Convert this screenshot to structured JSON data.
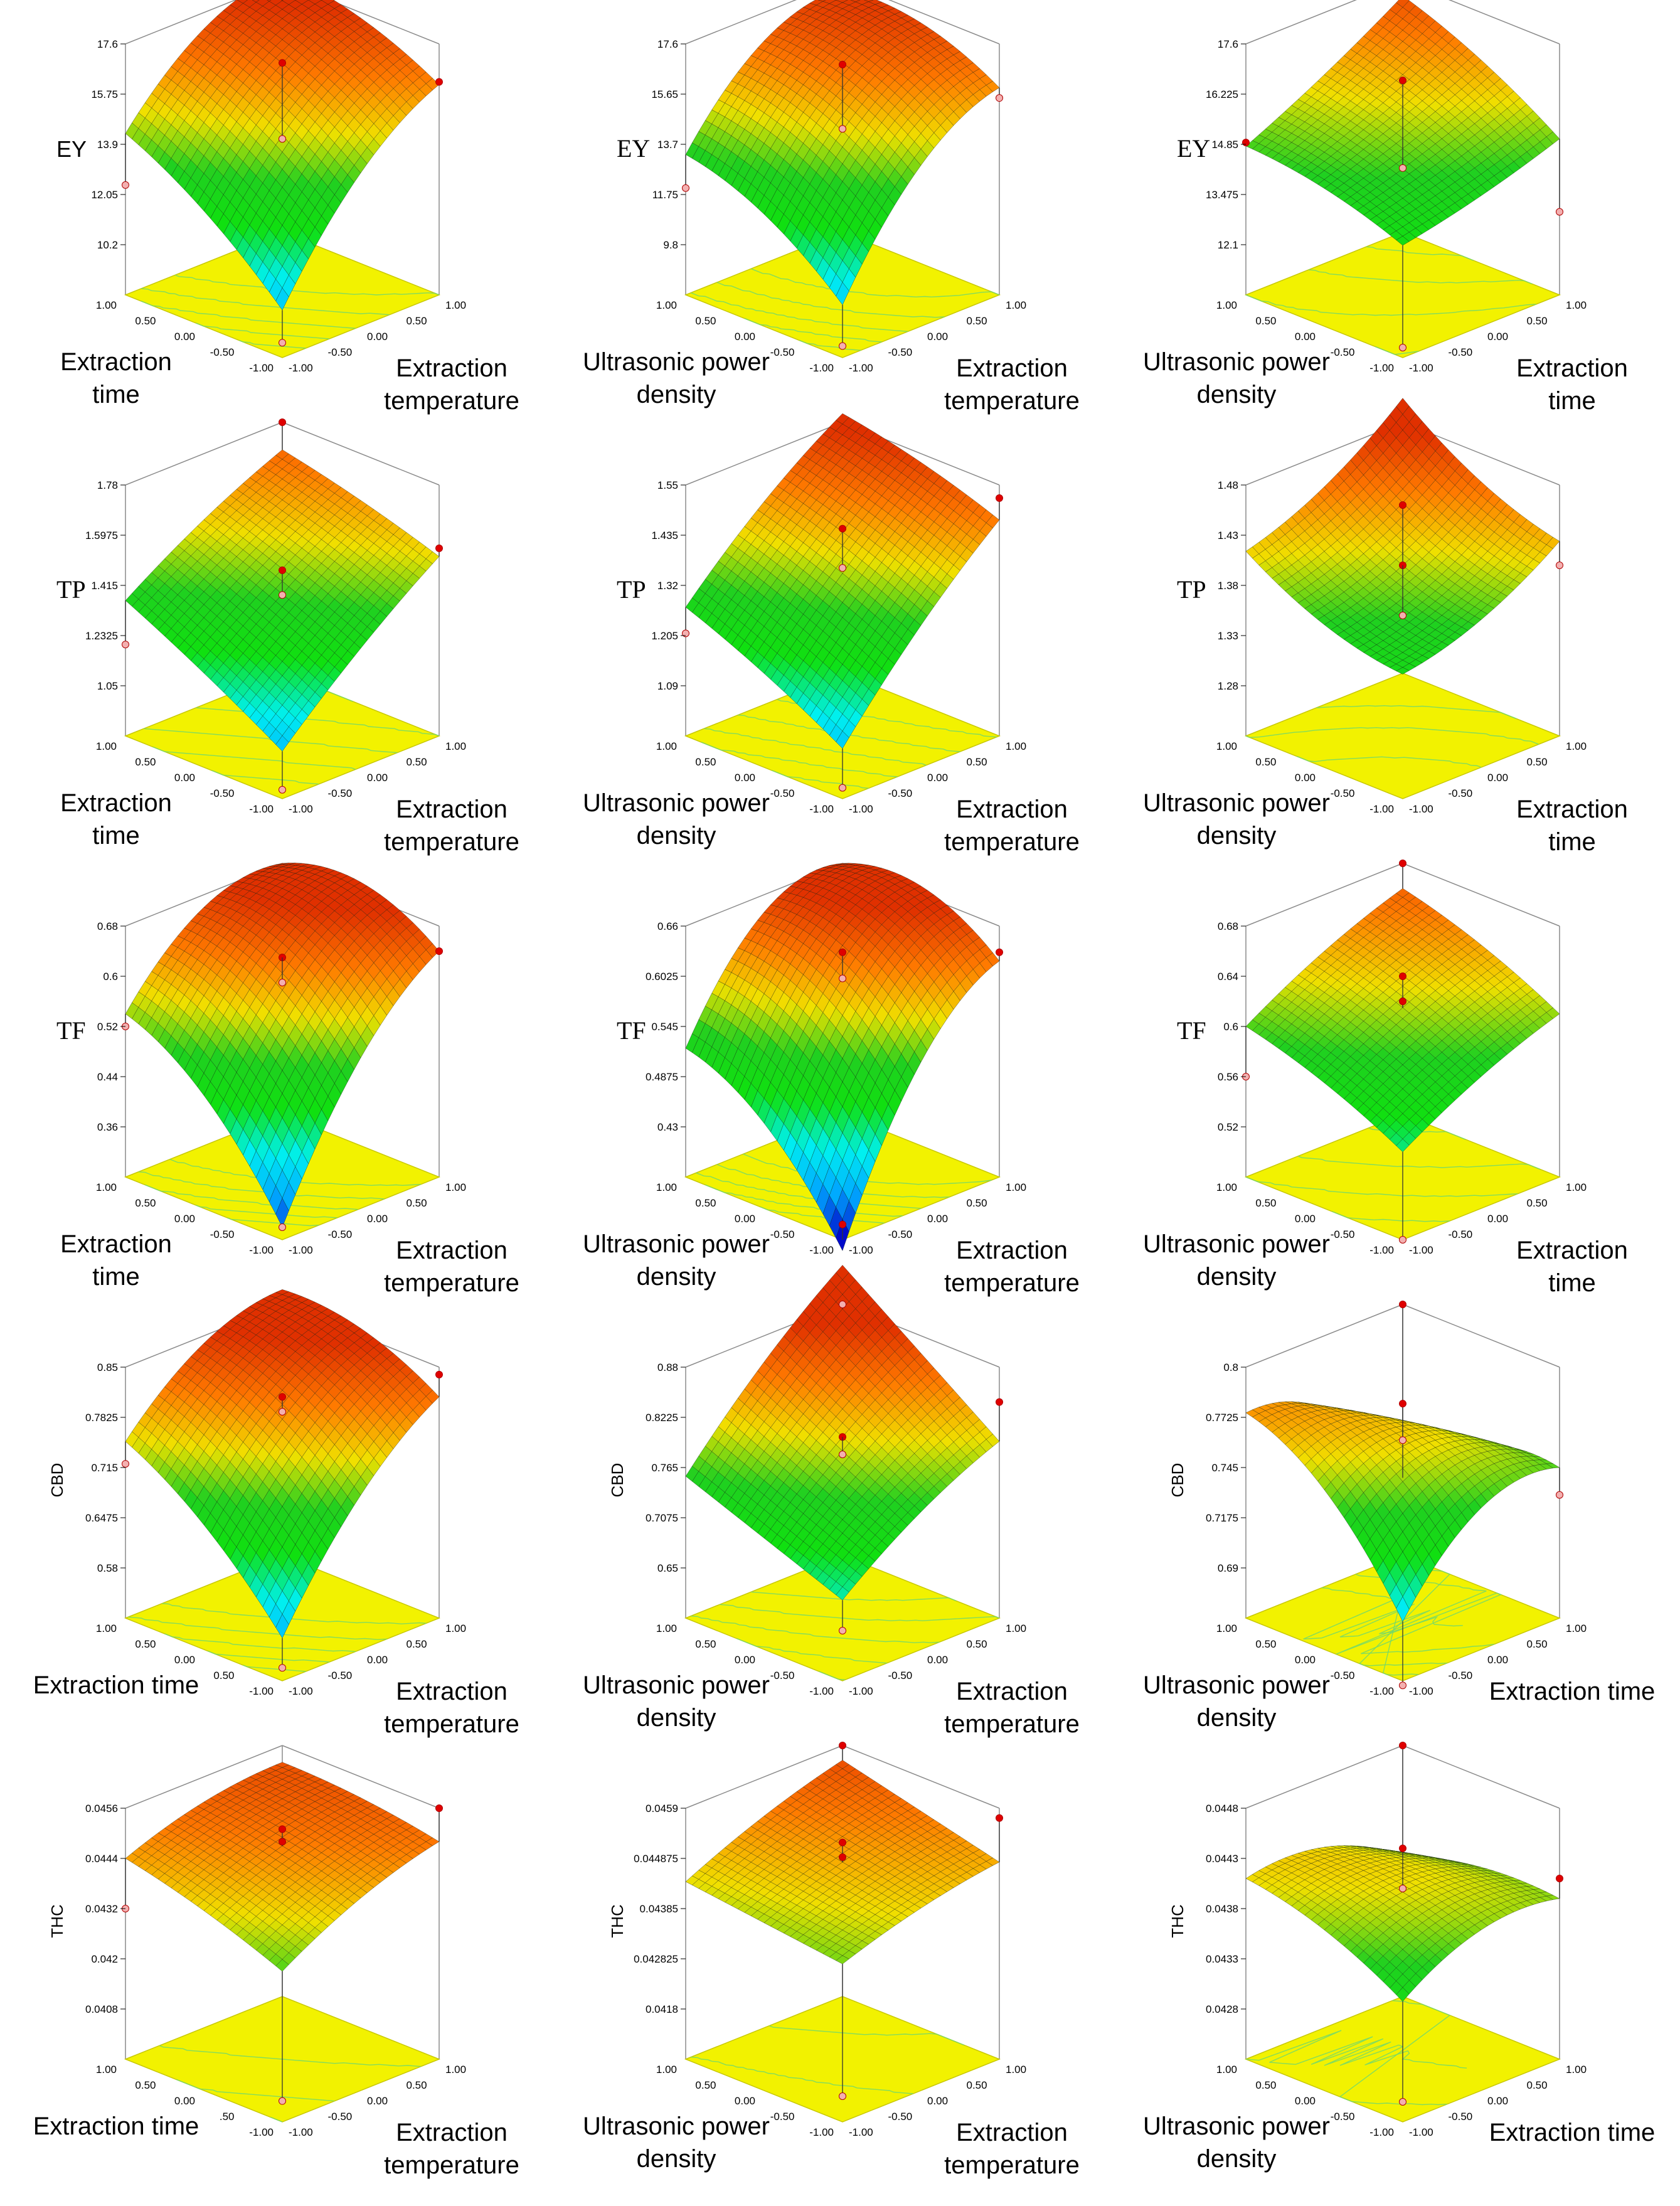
{
  "colors": {
    "base_plane": "#f2f200",
    "base_edge": "#c8c800",
    "contour": "#6fd86f",
    "box_line": "#8a8a8a",
    "mesh_line": "#0a1a0a",
    "point_fill": "#e00000",
    "point_hollow": "#f3b0b0",
    "colormap": [
      "#0000c8",
      "#00a8ff",
      "#00f0f0",
      "#10e010",
      "#20d020",
      "#f0e000",
      "#ff7a00",
      "#e03000"
    ]
  },
  "chart_data": [
    {
      "type": "surface3d",
      "response": "EY",
      "response_style": "sans",
      "x1label": [
        "Extraction",
        "time"
      ],
      "x2label": [
        "Extraction",
        "temperature"
      ],
      "x1ticks": [
        "1.00",
        "0.50",
        "0.00",
        "-0.50",
        "-1.00"
      ],
      "x2ticks": [
        "-1.00",
        "-0.50",
        "0.00",
        "0.50",
        "1.00"
      ],
      "zticks": [
        "10.2",
        "12.05",
        "13.9",
        "15.75",
        "17.6"
      ],
      "zlim": [
        8.35,
        17.6
      ],
      "model": {
        "b0": 15.9,
        "b1": 1.5,
        "b2": 2.4,
        "b11": -0.4,
        "b22": -0.9,
        "b12": -0.6
      },
      "points": [
        {
          "x1": 1,
          "x2": 1,
          "z": 17.6
        },
        {
          "x1": 0,
          "x2": 0,
          "z": 16.9
        },
        {
          "x1": 0,
          "x2": 0,
          "z": 14.1
        },
        {
          "x1": -1,
          "x2": 1,
          "z": 16.2
        },
        {
          "x1": 1,
          "x2": -1,
          "z": 12.4
        },
        {
          "x1": -1,
          "x2": -1,
          "z": 8.9
        }
      ]
    },
    {
      "type": "surface3d",
      "response": "EY",
      "response_style": "serif",
      "x1label": [
        "Ultrasonic power",
        "density"
      ],
      "x2label": [
        "Extraction",
        "temperature"
      ],
      "x1ticks": [
        "1.00",
        "0.50",
        "0.00",
        "-0.50",
        "-1.00"
      ],
      "x2ticks": [
        "-1.00",
        "-0.50",
        "0.00",
        "0.50",
        "1.00"
      ],
      "zticks": [
        "9.8",
        "11.75",
        "13.7",
        "15.65",
        "17.6"
      ],
      "zlim": [
        7.85,
        17.6
      ],
      "model": {
        "b0": 15.9,
        "b1": 1.2,
        "b2": 2.5,
        "b11": -0.6,
        "b22": -1.2,
        "b12": -0.5
      },
      "points": [
        {
          "x1": 0,
          "x2": 0,
          "z": 16.8
        },
        {
          "x1": 0,
          "x2": 0,
          "z": 14.3
        },
        {
          "x1": -1,
          "x2": 1,
          "z": 15.5
        },
        {
          "x1": 1,
          "x2": -1,
          "z": 12.0
        },
        {
          "x1": -1,
          "x2": -1,
          "z": 8.3
        }
      ]
    },
    {
      "type": "surface3d",
      "response": "EY",
      "response_style": "serif",
      "x1label": [
        "Ultrasonic power",
        "density"
      ],
      "x2label": [
        "Extraction",
        "time"
      ],
      "x1ticks": [
        "1.00",
        "0.50",
        "0.00",
        "-0.50",
        "-1.00"
      ],
      "x2ticks": [
        "-1.00",
        "-0.50",
        "0.00",
        "0.50",
        "1.00"
      ],
      "zticks": [
        "12.1",
        "13.475",
        "14.85",
        "16.225",
        "17.6"
      ],
      "zlim": [
        10.725,
        17.6
      ],
      "model": {
        "b0": 15.3,
        "b1": 0.8,
        "b2": 0.9,
        "b11": -0.2,
        "b22": 0.1,
        "b12": 0.3
      },
      "points": [
        {
          "x1": 0,
          "x2": 0,
          "z": 16.6
        },
        {
          "x1": 0,
          "x2": 0,
          "z": 14.2
        },
        {
          "x1": 1,
          "x2": -1,
          "z": 14.9
        },
        {
          "x1": -1,
          "x2": -1,
          "z": 11.0
        },
        {
          "x1": -1,
          "x2": 1,
          "z": 13.0
        }
      ]
    },
    {
      "type": "surface3d",
      "response": "TP",
      "response_style": "serif",
      "x1label": [
        "Extraction",
        "time"
      ],
      "x2label": [
        "Extraction",
        "temperature"
      ],
      "x1ticks": [
        "1.00",
        "0.50",
        "0.00",
        "-0.50",
        "-1.00"
      ],
      "x2ticks": [
        "-1.00",
        "-0.50",
        "0.00",
        "0.50",
        "1.00"
      ],
      "zticks": [
        "1.05",
        "1.2325",
        "1.415",
        "1.5975",
        "1.78"
      ],
      "zlim": [
        0.8675,
        1.78
      ],
      "model": {
        "b0": 1.43,
        "b1": 0.12,
        "b2": 0.2,
        "b11": -0.01,
        "b22": -0.02,
        "b12": -0.04
      },
      "points": [
        {
          "x1": 1,
          "x2": 1,
          "z": 1.78
        },
        {
          "x1": 0,
          "x2": 0,
          "z": 1.47
        },
        {
          "x1": 0,
          "x2": 0,
          "z": 1.38
        },
        {
          "x1": -1,
          "x2": 1,
          "z": 1.55
        },
        {
          "x1": 1,
          "x2": -1,
          "z": 1.2
        },
        {
          "x1": -1,
          "x2": -1,
          "z": 0.9
        }
      ]
    },
    {
      "type": "surface3d",
      "response": "TP",
      "response_style": "serif",
      "x1label": [
        "Ultrasonic power",
        "density"
      ],
      "x2label": [
        "Extraction",
        "temperature"
      ],
      "x1ticks": [
        "1.00",
        "0.50",
        "0.00",
        "-0.50",
        "-1.00"
      ],
      "x2ticks": [
        "-1.00",
        "-0.50",
        "0.00",
        "0.50",
        "1.00"
      ],
      "zticks": [
        "1.09",
        "1.205",
        "1.32",
        "1.435",
        "1.55"
      ],
      "zlim": [
        0.975,
        1.55
      ],
      "model": {
        "b0": 1.38,
        "b1": 0.07,
        "b2": 0.17,
        "b11": -0.01,
        "b22": -0.02,
        "b12": -0.02
      },
      "points": [
        {
          "x1": 0,
          "x2": 0,
          "z": 1.45
        },
        {
          "x1": 0,
          "x2": 0,
          "z": 1.36
        },
        {
          "x1": 1,
          "x2": -1,
          "z": 1.21
        },
        {
          "x1": -1,
          "x2": -1,
          "z": 1.0
        },
        {
          "x1": -1,
          "x2": 1,
          "z": 1.52
        }
      ]
    },
    {
      "type": "surface3d",
      "response": "TP",
      "response_style": "serif",
      "x1label": [
        "Ultrasonic power",
        "density"
      ],
      "x2label": [
        "Extraction",
        "time"
      ],
      "x1ticks": [
        "1.00",
        "0.50",
        "0.00",
        "-0.50",
        "-1.00"
      ],
      "x2ticks": [
        "-1.00",
        "-0.50",
        "0.00",
        "0.50",
        "1.00"
      ],
      "zticks": [
        "1.28",
        "1.33",
        "1.38",
        "1.43",
        "1.48"
      ],
      "zlim": [
        1.23,
        1.48
      ],
      "model": {
        "b0": 1.4,
        "b1": 0.035,
        "b2": 0.04,
        "b11": 0.012,
        "b22": 0.012,
        "b12": 0.005
      },
      "points": [
        {
          "x1": 0,
          "x2": 0,
          "z": 1.46
        },
        {
          "x1": 0,
          "x2": 0,
          "z": 1.4
        },
        {
          "x1": 0,
          "x2": 0,
          "z": 1.35
        },
        {
          "x1": -1,
          "x2": 1,
          "z": 1.4
        }
      ]
    },
    {
      "type": "surface3d",
      "response": "TF",
      "response_style": "serif",
      "x1label": [
        "Extraction",
        "time"
      ],
      "x2label": [
        "Extraction",
        "temperature"
      ],
      "x1ticks": [
        "1.00",
        "0.50",
        "0.00",
        "-0.50",
        "-1.00"
      ],
      "x2ticks": [
        "-1.00",
        "-0.50",
        "0.00",
        "0.50",
        "1.00"
      ],
      "zticks": [
        "0.36",
        "0.44",
        "0.52",
        "0.6",
        "0.68"
      ],
      "zlim": [
        0.28,
        0.68
      ],
      "model": {
        "b0": 0.63,
        "b1": 0.07,
        "b2": 0.12,
        "b11": -0.04,
        "b22": -0.05,
        "b12": -0.05
      },
      "points": [
        {
          "x1": 0,
          "x2": 0,
          "z": 0.63
        },
        {
          "x1": 0,
          "x2": 0,
          "z": 0.59
        },
        {
          "x1": -1,
          "x2": 1,
          "z": 0.64
        },
        {
          "x1": 1,
          "x2": -1,
          "z": 0.52
        },
        {
          "x1": -1,
          "x2": -1,
          "z": 0.3
        }
      ]
    },
    {
      "type": "surface3d",
      "response": "TF",
      "response_style": "serif",
      "x1label": [
        "Ultrasonic power",
        "density"
      ],
      "x2label": [
        "Extraction",
        "temperature"
      ],
      "x1ticks": [
        "1.00",
        "0.50",
        "0.00",
        "-0.50",
        "-1.00"
      ],
      "x2ticks": [
        "-1.00",
        "-0.50",
        "0.00",
        "0.50",
        "1.00"
      ],
      "zticks": [
        "0.43",
        "0.4875",
        "0.545",
        "0.6025",
        "0.66"
      ],
      "zlim": [
        0.3725,
        0.66
      ],
      "model": {
        "b0": 0.62,
        "b1": 0.05,
        "b2": 0.1,
        "b11": -0.03,
        "b22": -0.05,
        "b12": -0.03
      },
      "points": [
        {
          "x1": 0,
          "x2": 0,
          "z": 0.63
        },
        {
          "x1": 0,
          "x2": 0,
          "z": 0.6
        },
        {
          "x1": -1,
          "x2": 1,
          "z": 0.63
        },
        {
          "x1": -1,
          "x2": -1,
          "z": 0.39
        }
      ]
    },
    {
      "type": "surface3d",
      "response": "TF",
      "response_style": "serif",
      "x1label": [
        "Ultrasonic power",
        "density"
      ],
      "x2label": [
        "Extraction",
        "time"
      ],
      "x1ticks": [
        "1.00",
        "0.50",
        "0.00",
        "-0.50",
        "-1.00"
      ],
      "x2ticks": [
        "-1.00",
        "-0.50",
        "0.00",
        "0.50",
        "1.00"
      ],
      "zticks": [
        "0.52",
        "0.56",
        "0.6",
        "0.64",
        "0.68"
      ],
      "zlim": [
        0.48,
        0.68
      ],
      "model": {
        "b0": 0.615,
        "b1": 0.025,
        "b2": 0.03,
        "b11": -0.005,
        "b22": -0.005,
        "b12": 0.0
      },
      "points": [
        {
          "x1": 1,
          "x2": 1,
          "z": 0.68
        },
        {
          "x1": 0,
          "x2": 0,
          "z": 0.64
        },
        {
          "x1": 0,
          "x2": 0,
          "z": 0.62
        },
        {
          "x1": 1,
          "x2": -1,
          "z": 0.56
        },
        {
          "x1": -1,
          "x2": -1,
          "z": 0.48
        }
      ]
    },
    {
      "type": "surface3d",
      "response": "CBD",
      "response_style": "small",
      "x1label": [
        "Extraction time"
      ],
      "x2label": [
        "Extraction",
        "temperature"
      ],
      "x1ticks": [
        "1.00",
        "0.50",
        "0.00",
        "0.50",
        "-1.00"
      ],
      "x2ticks": [
        "-1.00",
        "-0.50",
        "0.00",
        "0.50",
        "1.00"
      ],
      "zticks": [
        "0.58",
        "0.6475",
        "0.715",
        "0.7825",
        "0.85"
      ],
      "zlim": [
        0.5125,
        0.85
      ],
      "model": {
        "b0": 0.8,
        "b1": 0.06,
        "b2": 0.09,
        "b11": -0.02,
        "b22": -0.03,
        "b12": -0.03
      },
      "points": [
        {
          "x1": 0,
          "x2": 0,
          "z": 0.81
        },
        {
          "x1": 0,
          "x2": 0,
          "z": 0.79
        },
        {
          "x1": -1,
          "x2": 1,
          "z": 0.84
        },
        {
          "x1": 1,
          "x2": -1,
          "z": 0.72
        },
        {
          "x1": -1,
          "x2": -1,
          "z": 0.53
        }
      ]
    },
    {
      "type": "surface3d",
      "response": "CBD",
      "response_style": "small",
      "x1label": [
        "Ultrasonic power",
        "density"
      ],
      "x2label": [
        "Extraction",
        "temperature"
      ],
      "x1ticks": [
        "1.00",
        "0.50",
        "0.00",
        "-0.50",
        "-1.00"
      ],
      "x2ticks": [
        "-1.00",
        "-0.50",
        "0.00",
        "0.50",
        "1.00"
      ],
      "zticks": [
        "0.65",
        "0.7075",
        "0.765",
        "0.8225",
        "0.88"
      ],
      "zlim": [
        0.5925,
        0.88
      ],
      "model": {
        "b0": 0.8,
        "b1": 0.05,
        "b2": 0.07,
        "b11": 0.0,
        "b22": -0.01,
        "b12": 0.015
      },
      "points": [
        {
          "x1": 1,
          "x2": 1,
          "z": 0.88
        },
        {
          "x1": 0,
          "x2": 0,
          "z": 0.8
        },
        {
          "x1": 0,
          "x2": 0,
          "z": 0.78
        },
        {
          "x1": -1,
          "x2": 1,
          "z": 0.84
        },
        {
          "x1": -1,
          "x2": -1,
          "z": 0.65
        }
      ]
    },
    {
      "type": "surface3d",
      "response": "CBD",
      "response_style": "small",
      "x1label": [
        "Ultrasonic power",
        "density"
      ],
      "x2label": [
        "Extraction time"
      ],
      "x1ticks": [
        "1.00",
        "0.50",
        "0.00",
        "-0.50",
        "-1.00"
      ],
      "x2ticks": [
        "-1.00",
        "-0.50",
        "0.00",
        "0.50",
        "1.00"
      ],
      "zticks": [
        "0.69",
        "0.7175",
        "0.745",
        "0.7725",
        "0.8"
      ],
      "zlim": [
        0.6625,
        0.8
      ],
      "model": {
        "b0": 0.765,
        "b1": 0.01,
        "b2": -0.005,
        "b11": -0.015,
        "b22": -0.02,
        "b12": -0.03
      },
      "points": [
        {
          "x1": 1,
          "x2": 1,
          "z": 0.8
        },
        {
          "x1": 0,
          "x2": 0,
          "z": 0.78
        },
        {
          "x1": 0,
          "x2": 0,
          "z": 0.76
        },
        {
          "x1": -1,
          "x2": 1,
          "z": 0.73
        },
        {
          "x1": -1,
          "x2": -1,
          "z": 0.66
        }
      ]
    },
    {
      "type": "surface3d",
      "response": "THC",
      "response_style": "small",
      "x1label": [
        "Extraction time"
      ],
      "x2label": [
        "Extraction",
        "temperature"
      ],
      "x1ticks": [
        "1.00",
        "0.50",
        "0.00",
        ".50",
        "-1.00"
      ],
      "x2ticks": [
        "-1.00",
        "-0.50",
        "0.00",
        "0.50",
        "1.00"
      ],
      "zticks": [
        "0.0408",
        "0.042",
        "0.0432",
        "0.0444",
        "0.0456"
      ],
      "zlim": [
        0.0396,
        0.0456
      ],
      "model": {
        "b0": 0.0447,
        "b1": 0.0004,
        "b2": 0.0006,
        "b11": -0.0001,
        "b22": -0.0002,
        "b12": -0.0002
      },
      "points": [
        {
          "x1": 0,
          "x2": 0,
          "z": 0.0451
        },
        {
          "x1": 0,
          "x2": 0,
          "z": 0.0448
        },
        {
          "x1": -1,
          "x2": 1,
          "z": 0.0456
        },
        {
          "x1": 1,
          "x2": -1,
          "z": 0.0432
        },
        {
          "x1": -1,
          "x2": -1,
          "z": 0.0401
        }
      ]
    },
    {
      "type": "surface3d",
      "response": "THC",
      "response_style": "small",
      "x1label": [
        "Ultrasonic power",
        "density"
      ],
      "x2label": [
        "Extraction",
        "temperature"
      ],
      "x1ticks": [
        "1.00",
        "0.50",
        "0.00",
        "-0.50",
        "-1.00"
      ],
      "x2ticks": [
        "-1.00",
        "-0.50",
        "0.00",
        "0.50",
        "1.00"
      ],
      "zticks": [
        "0.0418",
        "0.042825",
        "0.04385",
        "0.044875",
        "0.0459"
      ],
      "zlim": [
        0.040775,
        0.0459
      ],
      "model": {
        "b0": 0.0448,
        "b1": 0.0003,
        "b2": 0.0005,
        "b11": 0.0,
        "b22": -0.0001,
        "b12": 0.0001
      },
      "points": [
        {
          "x1": 1,
          "x2": 1,
          "z": 0.0459
        },
        {
          "x1": 0,
          "x2": 0,
          "z": 0.0452
        },
        {
          "x1": 0,
          "x2": 0,
          "z": 0.0449
        },
        {
          "x1": -1,
          "x2": 1,
          "z": 0.0457
        },
        {
          "x1": -1,
          "x2": -1,
          "z": 0.0413
        }
      ]
    },
    {
      "type": "surface3d",
      "response": "THC",
      "response_style": "small",
      "x1label": [
        "Ultrasonic power",
        "density"
      ],
      "x2label": [
        "Extraction time"
      ],
      "x1ticks": [
        "1.00",
        "0.50",
        "0.00",
        "-0.50",
        "-1.00"
      ],
      "x2ticks": [
        "-1.00",
        "-0.50",
        "0.00",
        "0.50",
        "1.00"
      ],
      "zticks": [
        "0.0428",
        "0.0433",
        "0.0438",
        "0.0443",
        "0.0448"
      ],
      "zlim": [
        0.0423,
        0.0448
      ],
      "model": {
        "b0": 0.0441,
        "b1": 0.0001,
        "b2": 0.0,
        "b11": -0.0001,
        "b22": -0.0002,
        "b12": -0.0002
      },
      "points": [
        {
          "x1": 1,
          "x2": 1,
          "z": 0.0448
        },
        {
          "x1": 0,
          "x2": 0,
          "z": 0.0444
        },
        {
          "x1": 0,
          "x2": 0,
          "z": 0.044
        },
        {
          "x1": -1,
          "x2": 1,
          "z": 0.0441
        },
        {
          "x1": -1,
          "x2": -1,
          "z": 0.0425
        }
      ]
    }
  ]
}
